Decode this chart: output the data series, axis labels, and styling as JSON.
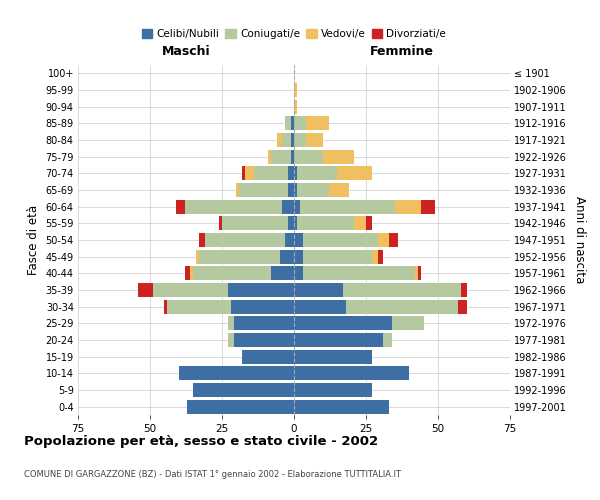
{
  "age_groups": [
    "0-4",
    "5-9",
    "10-14",
    "15-19",
    "20-24",
    "25-29",
    "30-34",
    "35-39",
    "40-44",
    "45-49",
    "50-54",
    "55-59",
    "60-64",
    "65-69",
    "70-74",
    "75-79",
    "80-84",
    "85-89",
    "90-94",
    "95-99",
    "100+"
  ],
  "birth_years": [
    "1997-2001",
    "1992-1996",
    "1987-1991",
    "1982-1986",
    "1977-1981",
    "1972-1976",
    "1967-1971",
    "1962-1966",
    "1957-1961",
    "1952-1956",
    "1947-1951",
    "1942-1946",
    "1937-1941",
    "1932-1936",
    "1927-1931",
    "1922-1926",
    "1917-1921",
    "1912-1916",
    "1907-1911",
    "1902-1906",
    "≤ 1901"
  ],
  "colors": {
    "celibi": "#3d6fa5",
    "coniugati": "#b5c9a0",
    "vedovi": "#f0c060",
    "divorziati": "#cc2222"
  },
  "maschi": {
    "celibi": [
      37,
      35,
      40,
      18,
      21,
      21,
      22,
      23,
      8,
      5,
      3,
      2,
      4,
      2,
      2,
      1,
      1,
      1,
      0,
      0,
      0
    ],
    "coniugati": [
      0,
      0,
      0,
      0,
      2,
      2,
      22,
      26,
      27,
      28,
      28,
      23,
      34,
      17,
      12,
      7,
      3,
      2,
      0,
      0,
      0
    ],
    "vedovi": [
      0,
      0,
      0,
      0,
      0,
      0,
      0,
      0,
      1,
      1,
      0,
      0,
      0,
      1,
      3,
      1,
      2,
      0,
      0,
      0,
      0
    ],
    "divorziati": [
      0,
      0,
      0,
      0,
      0,
      0,
      1,
      5,
      2,
      0,
      2,
      1,
      3,
      0,
      1,
      0,
      0,
      0,
      0,
      0,
      0
    ]
  },
  "femmine": {
    "celibi": [
      33,
      27,
      40,
      27,
      31,
      34,
      18,
      17,
      3,
      3,
      3,
      1,
      2,
      1,
      1,
      0,
      0,
      0,
      0,
      0,
      0
    ],
    "coniugati": [
      0,
      0,
      0,
      0,
      3,
      11,
      39,
      41,
      39,
      24,
      26,
      20,
      33,
      11,
      14,
      10,
      4,
      4,
      0,
      0,
      0
    ],
    "vedovi": [
      0,
      0,
      0,
      0,
      0,
      0,
      0,
      0,
      1,
      2,
      4,
      4,
      9,
      7,
      12,
      11,
      6,
      8,
      1,
      1,
      0
    ],
    "divorziati": [
      0,
      0,
      0,
      0,
      0,
      0,
      3,
      2,
      1,
      2,
      3,
      2,
      5,
      0,
      0,
      0,
      0,
      0,
      0,
      0,
      0
    ]
  },
  "title": "Popolazione per età, sesso e stato civile - 2002",
  "subtitle": "COMUNE DI GARGAZZONE (BZ) - Dati ISTAT 1° gennaio 2002 - Elaborazione TUTTITALIA.IT",
  "ylabel_left": "Fasce di età",
  "ylabel_right": "Anni di nascita",
  "xlabel_left": "Maschi",
  "xlabel_right": "Femmine",
  "xlim": 75,
  "background_color": "#ffffff",
  "grid_color": "#cccccc"
}
